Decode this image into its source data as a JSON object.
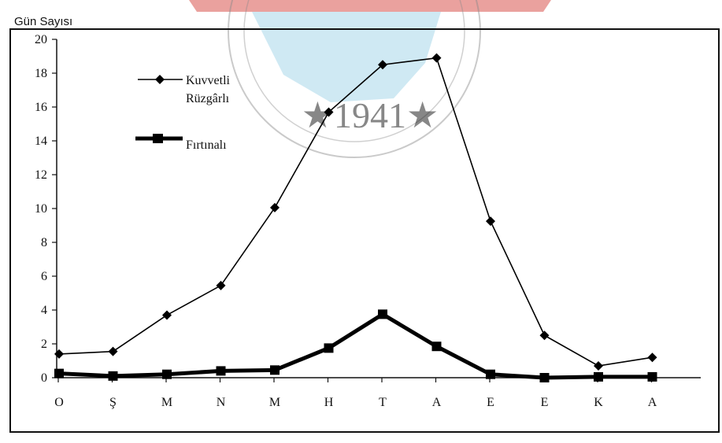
{
  "chart_data": {
    "type": "line",
    "title": "",
    "ylabel": "Gün Sayısı",
    "xlabel": "",
    "categories": [
      "O",
      "Ş",
      "M",
      "N",
      "M",
      "H",
      "T",
      "A",
      "E",
      "E",
      "K",
      "A"
    ],
    "ylim": [
      0,
      20
    ],
    "yticks": [
      0,
      2,
      4,
      6,
      8,
      10,
      12,
      14,
      16,
      18,
      20
    ],
    "grid": false,
    "legend_position": "top-left",
    "series": [
      {
        "name": "Kuvvetli Rüzgârlı",
        "legend_lines": [
          "Kuvvetli",
          "Rüzgârlı"
        ],
        "marker": "diamond",
        "color": "#000000",
        "values": [
          1.4,
          1.55,
          3.7,
          5.45,
          10.05,
          15.7,
          18.5,
          18.9,
          9.25,
          2.5,
          0.7,
          1.2
        ]
      },
      {
        "name": "Fırtınalı",
        "legend_lines": [
          "Fırtınalı"
        ],
        "marker": "square",
        "color": "#000000",
        "values": [
          0.25,
          0.1,
          0.2,
          0.4,
          0.45,
          1.75,
          3.75,
          1.85,
          0.2,
          0.0,
          0.05,
          0.05
        ]
      }
    ],
    "watermark": {
      "text": "★1941★",
      "colors": {
        "red": "#d9534f",
        "blue": "#9fd3e8",
        "ring": "#8a8a8a"
      }
    }
  }
}
